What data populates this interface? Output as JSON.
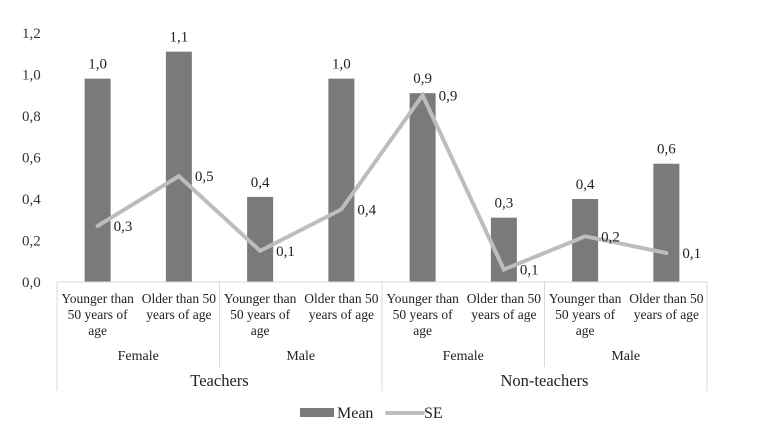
{
  "chart_data": {
    "type": "bar",
    "title": "",
    "xlabel": "",
    "ylabel": "",
    "ylim": [
      0,
      1.2
    ],
    "yticks": [
      "0,0",
      "0,2",
      "0,4",
      "0,6",
      "0,8",
      "1,0",
      "1,2"
    ],
    "grid": false,
    "legend_position": "bottom",
    "categories": [
      "Teachers / Female / Younger than 50 years of age",
      "Teachers / Female / Older than 50 years of age",
      "Teachers / Male / Younger than 50 years of age",
      "Teachers / Male / Older than 50 years of age",
      "Non-teachers / Female / Younger than 50 years of age",
      "Non-teachers / Female / Older than 50 years of age",
      "Non-teachers / Male / Younger than 50 years of age",
      "Non-teachers / Male / Older than 50 years of age"
    ],
    "category_levels": {
      "level1": [
        {
          "label_lines": [
            "Younger than",
            "50 years of",
            "age"
          ]
        },
        {
          "label_lines": [
            "Older than 50",
            "years of age"
          ]
        },
        {
          "label_lines": [
            "Younger than",
            "50 years of",
            "age"
          ]
        },
        {
          "label_lines": [
            "Older than 50",
            "years of age"
          ]
        },
        {
          "label_lines": [
            "Younger than",
            "50 years of",
            "age"
          ]
        },
        {
          "label_lines": [
            "Older than 50",
            "years of age"
          ]
        },
        {
          "label_lines": [
            "Younger than",
            "50 years of",
            "age"
          ]
        },
        {
          "label_lines": [
            "Older than 50",
            "years of age"
          ]
        }
      ],
      "level2": [
        "Female",
        "Male",
        "Female",
        "Male"
      ],
      "level3": [
        "Teachers",
        "Non-teachers"
      ]
    },
    "series": [
      {
        "name": "Mean",
        "type": "bar",
        "color": "#7a7a7a",
        "values": [
          0.98,
          1.11,
          0.41,
          0.98,
          0.91,
          0.31,
          0.4,
          0.57
        ],
        "labels": [
          "1,0",
          "1,1",
          "0,4",
          "1,0",
          "0,9",
          "0,3",
          "0,4",
          "0,6"
        ]
      },
      {
        "name": "SE",
        "type": "line",
        "color": "#bdbdbd",
        "values": [
          0.27,
          0.51,
          0.15,
          0.35,
          0.9,
          0.06,
          0.22,
          0.14
        ],
        "labels": [
          "0,3",
          "0,5",
          "0,1",
          "0,4",
          "0,9",
          "0,1",
          "0,2",
          "0,1"
        ]
      }
    ]
  }
}
